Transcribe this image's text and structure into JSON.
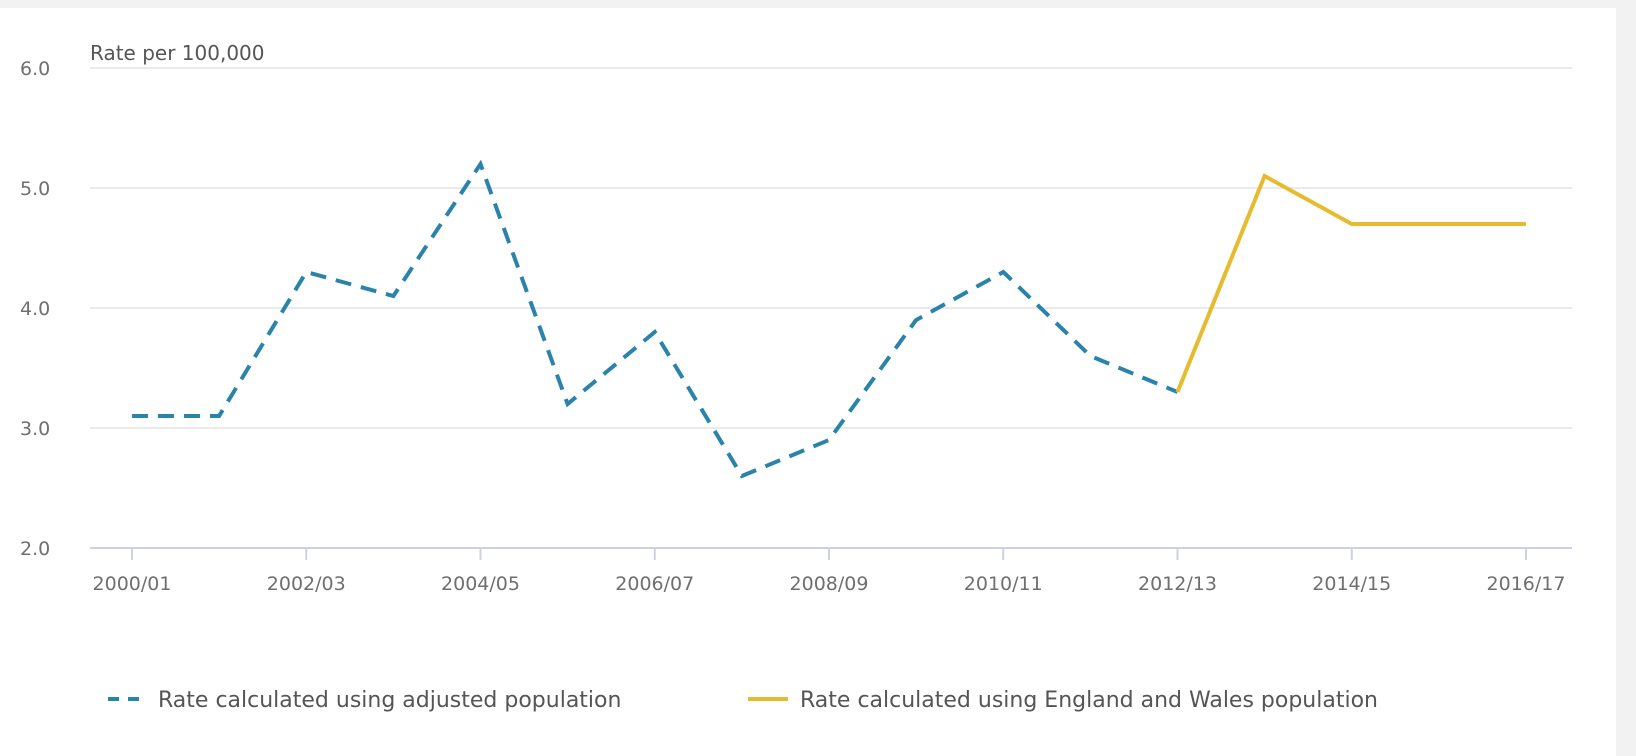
{
  "chart_data": {
    "type": "line",
    "ylabel": "Rate per 100,000",
    "ylim": [
      2.0,
      6.0
    ],
    "yticks": [
      "6.0",
      "5.0",
      "4.0",
      "3.0",
      "2.0"
    ],
    "ytick_values": [
      6.0,
      5.0,
      4.0,
      3.0,
      2.0
    ],
    "categories": [
      "2000/01",
      "2001/02",
      "2002/03",
      "2003/04",
      "2004/05",
      "2005/06",
      "2006/07",
      "2007/08",
      "2008/09",
      "2009/10",
      "2010/11",
      "2011/12",
      "2012/13",
      "2013/14",
      "2014/15",
      "2015/16",
      "2016/17"
    ],
    "xtick_labels": [
      "2000/01",
      "2002/03",
      "2004/05",
      "2006/07",
      "2008/09",
      "2010/11",
      "2012/13",
      "2014/15",
      "2016/17"
    ],
    "grid": true,
    "legend_position": "bottom",
    "series": [
      {
        "name": "Rate calculated using adjusted population",
        "color": "#2a83aa",
        "style": "dashed",
        "values": [
          3.1,
          3.1,
          4.3,
          4.1,
          5.2,
          3.2,
          3.8,
          2.6,
          2.9,
          3.9,
          4.3,
          3.6,
          3.3,
          null,
          null,
          null,
          null
        ]
      },
      {
        "name": "Rate calculated using England and Wales population",
        "color": "#e6bb2e",
        "style": "solid",
        "values": [
          null,
          null,
          null,
          null,
          null,
          null,
          null,
          null,
          null,
          null,
          null,
          null,
          3.3,
          5.1,
          4.7,
          4.7,
          4.7
        ]
      }
    ]
  }
}
